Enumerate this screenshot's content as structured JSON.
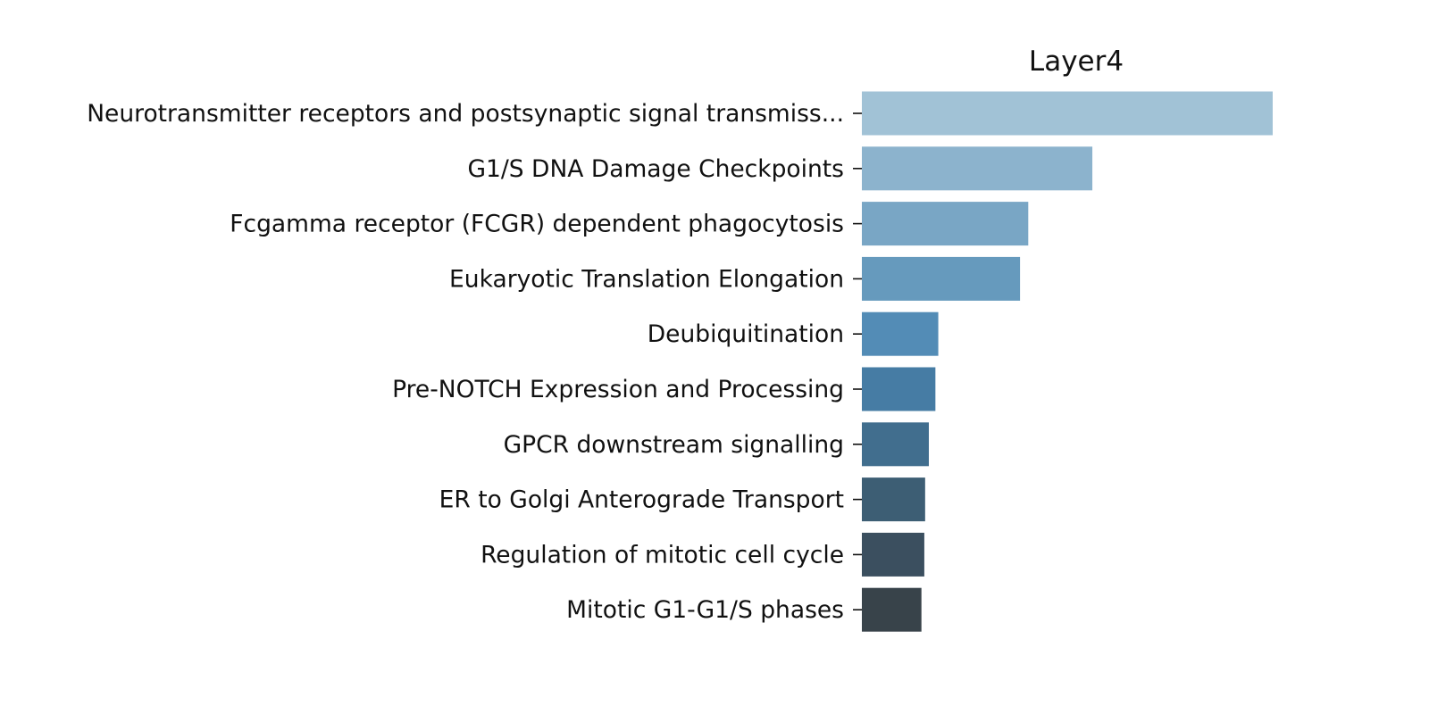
{
  "chart_data": {
    "type": "bar",
    "orientation": "horizontal",
    "title": "Layer4",
    "xlabel": "",
    "ylabel": "",
    "x_axis_visible": false,
    "grid": false,
    "legend": "none",
    "categories": [
      "Neurotransmitter receptors and postsynaptic signal transmiss...",
      "G1/S DNA Damage Checkpoints",
      "Fcgamma receptor (FCGR) dependent phagocytosis",
      "Eukaryotic Translation Elongation",
      "Deubiquitination",
      "Pre-NOTCH Expression and Processing",
      "GPCR downstream signalling",
      "ER to Golgi Anterograde Transport",
      "Regulation of mitotic cell cycle",
      "Mitotic G1-G1/S phases"
    ],
    "values": [
      1.0,
      0.561,
      0.405,
      0.385,
      0.186,
      0.179,
      0.163,
      0.154,
      0.152,
      0.145
    ],
    "value_note": "no x-axis ticks shown; values relative to longest bar",
    "colors": [
      "#a1c2d6",
      "#8cb3cd",
      "#79a6c5",
      "#669abd",
      "#538cb6",
      "#467ca4",
      "#416e8e",
      "#3d5e74",
      "#3b4f5f",
      "#38434a"
    ]
  }
}
